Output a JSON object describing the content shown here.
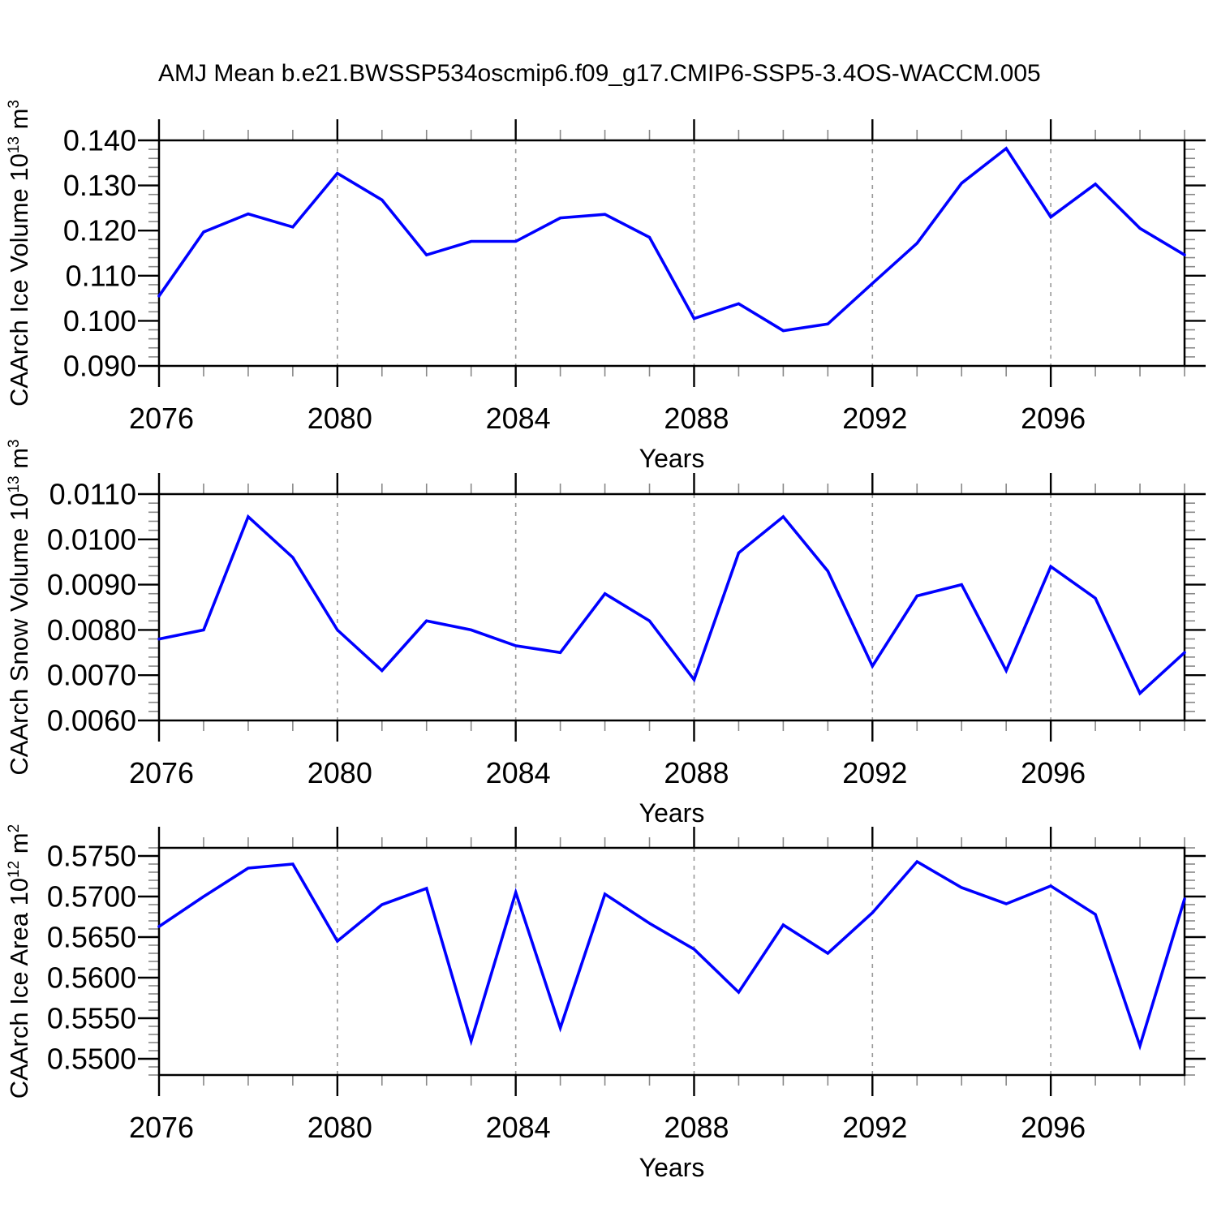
{
  "title": "AMJ Mean b.e21.BWSSP534oscmip6.f09_g17.CMIP6-SSP5-3.4OS-WACCM.005",
  "style": {
    "background": "#ffffff",
    "line_color": "#0000ff",
    "frame_color": "#000000",
    "major_tick_color": "#000000",
    "minor_tick_color": "#888888",
    "grid_color": "#999999",
    "text_color": "#000000"
  },
  "x_axis": {
    "label": "Years",
    "years": [
      2076,
      2077,
      2078,
      2079,
      2080,
      2081,
      2082,
      2083,
      2084,
      2085,
      2086,
      2087,
      2088,
      2089,
      2090,
      2091,
      2092,
      2093,
      2094,
      2095,
      2096,
      2097,
      2098,
      2099
    ],
    "major_years": [
      2076,
      2080,
      2084,
      2088,
      2092,
      2096
    ],
    "major_labels": [
      "2076",
      "2080",
      "2084",
      "2088",
      "2092",
      "2096"
    ],
    "grid_years": [
      2080,
      2084,
      2088,
      2092,
      2096
    ]
  },
  "chart_data": [
    {
      "type": "line",
      "name": "ice-volume",
      "ylabel": "CAArch Ice Volume 10^13 m^3",
      "ylabel_parts": [
        {
          "text": "CAArch Ice Volume 10",
          "sup": false
        },
        {
          "text": "13",
          "sup": true
        },
        {
          "text": " m",
          "sup": false
        },
        {
          "text": "3",
          "sup": true
        }
      ],
      "xlabel": "Years",
      "ylim": [
        0.09,
        0.14
      ],
      "ytick_values": [
        0.09,
        0.1,
        0.11,
        0.12,
        0.13,
        0.14
      ],
      "ytick_labels": [
        "0.090",
        "0.100",
        "0.110",
        "0.120",
        "0.130",
        "0.140"
      ],
      "yminor_step": 0.002,
      "x": [
        2076,
        2077,
        2078,
        2079,
        2080,
        2081,
        2082,
        2083,
        2084,
        2085,
        2086,
        2087,
        2088,
        2089,
        2090,
        2091,
        2092,
        2093,
        2094,
        2095,
        2096,
        2097,
        2098,
        2099
      ],
      "values": [
        0.1055,
        0.1197,
        0.1237,
        0.1208,
        0.1327,
        0.1268,
        0.1146,
        0.1176,
        0.1176,
        0.1228,
        0.1236,
        0.1185,
        0.1005,
        0.1038,
        0.0978,
        0.0993,
        0.1083,
        0.1172,
        0.1305,
        0.1382,
        0.123,
        0.1303,
        0.1205,
        0.1146
      ]
    },
    {
      "type": "line",
      "name": "snow-volume",
      "ylabel": "CAArch Snow Volume 10^13 m^3",
      "ylabel_parts": [
        {
          "text": "CAArch Snow Volume 10",
          "sup": false
        },
        {
          "text": "13",
          "sup": true
        },
        {
          "text": " m",
          "sup": false
        },
        {
          "text": "3",
          "sup": true
        }
      ],
      "xlabel": "Years",
      "ylim": [
        0.006,
        0.011
      ],
      "ytick_values": [
        0.006,
        0.007,
        0.008,
        0.009,
        0.01,
        0.011
      ],
      "ytick_labels": [
        "0.0060",
        "0.0070",
        "0.0080",
        "0.0090",
        "0.0100",
        "0.0110"
      ],
      "yminor_step": 0.0002,
      "x": [
        2076,
        2077,
        2078,
        2079,
        2080,
        2081,
        2082,
        2083,
        2084,
        2085,
        2086,
        2087,
        2088,
        2089,
        2090,
        2091,
        2092,
        2093,
        2094,
        2095,
        2096,
        2097,
        2098,
        2099
      ],
      "values": [
        0.0078,
        0.008,
        0.0105,
        0.0096,
        0.008,
        0.0071,
        0.0082,
        0.008,
        0.00765,
        0.0075,
        0.0088,
        0.0082,
        0.0069,
        0.0097,
        0.0105,
        0.0093,
        0.0072,
        0.00875,
        0.009,
        0.0071,
        0.0094,
        0.0087,
        0.0066,
        0.0075
      ]
    },
    {
      "type": "line",
      "name": "ice-area",
      "ylabel": "CAArch Ice Area 10^12 m^2",
      "ylabel_parts": [
        {
          "text": "CAArch Ice Area 10",
          "sup": false
        },
        {
          "text": "12",
          "sup": true
        },
        {
          "text": " m",
          "sup": false
        },
        {
          "text": "2",
          "sup": true
        }
      ],
      "xlabel": "Years",
      "ylim": [
        0.548,
        0.576
      ],
      "ytick_values": [
        0.55,
        0.555,
        0.56,
        0.565,
        0.57,
        0.575
      ],
      "ytick_labels": [
        "0.5500",
        "0.5550",
        "0.5600",
        "0.5650",
        "0.5700",
        "0.5750"
      ],
      "yminor_step": 0.001,
      "x": [
        2076,
        2077,
        2078,
        2079,
        2080,
        2081,
        2082,
        2083,
        2084,
        2085,
        2086,
        2087,
        2088,
        2089,
        2090,
        2091,
        2092,
        2093,
        2094,
        2095,
        2096,
        2097,
        2098,
        2099
      ],
      "values": [
        0.5663,
        0.57,
        0.5735,
        0.574,
        0.5645,
        0.569,
        0.571,
        0.5522,
        0.5705,
        0.5538,
        0.5703,
        0.5667,
        0.5635,
        0.5582,
        0.5665,
        0.563,
        0.568,
        0.5743,
        0.5711,
        0.5691,
        0.5713,
        0.5678,
        0.5516,
        0.5697
      ]
    }
  ]
}
